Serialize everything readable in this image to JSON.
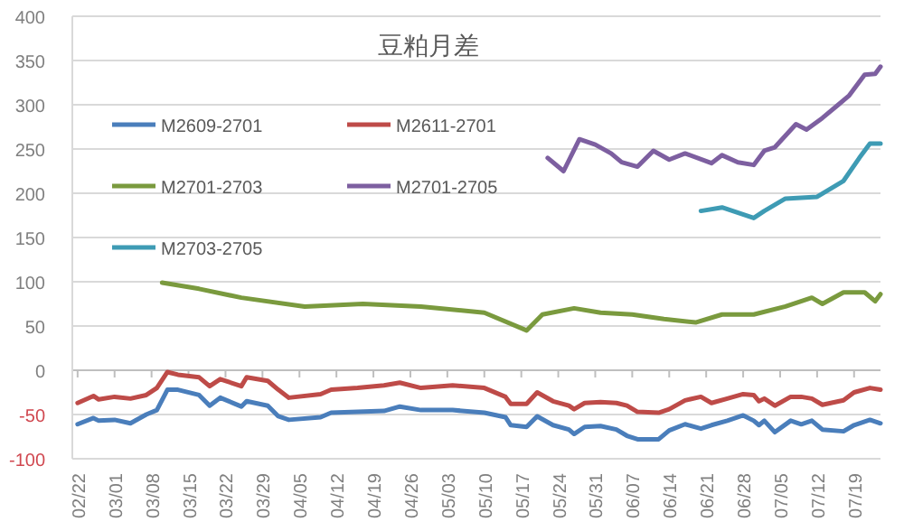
{
  "chart_data": {
    "type": "line",
    "title": "豆粕月差",
    "legend": "top left",
    "grid": "y",
    "marker": "none",
    "line_style": "solid",
    "x": [
      "--02-22",
      "--02-25",
      "--02-26",
      "--03-01",
      "--03-04",
      "--03-07",
      "--03-09",
      "--03-11",
      "--03-13",
      "--03-17",
      "--03-19",
      "--03-21",
      "--03-25",
      "--03-26",
      "--03-30",
      "--04-01",
      "--04-03",
      "--04-09",
      "--04-11",
      "--04-16",
      "--04-21",
      "--04-24",
      "--04-28",
      "--05-04",
      "--05-10",
      "--05-14",
      "--05-15",
      "--05-18",
      "--05-20",
      "--05-23",
      "--05-26",
      "--05-27",
      "--05-29",
      "--06-01",
      "--06-04",
      "--06-06",
      "--06-08",
      "--06-12",
      "--06-14",
      "--06-17",
      "--06-20",
      "--06-22",
      "--06-25",
      "--06-28",
      "--06-30",
      "--07-01",
      "--07-02",
      "--07-04",
      "--07-07",
      "--07-09",
      "--07-11",
      "--07-13",
      "--07-17",
      "--07-19",
      "--07-22",
      "--07-24"
    ],
    "xlim": [
      "--02-21",
      "--07-24"
    ],
    "xticks": [
      {
        "value": "--02-22",
        "label": "02/22"
      },
      {
        "value": "--03-01",
        "label": "03/01"
      },
      {
        "value": "--03-08",
        "label": "03/08"
      },
      {
        "value": "--03-15",
        "label": "03/15"
      },
      {
        "value": "--03-22",
        "label": "03/22"
      },
      {
        "value": "--03-29",
        "label": "03/29"
      },
      {
        "value": "--04-05",
        "label": "04/05"
      },
      {
        "value": "--04-12",
        "label": "04/12"
      },
      {
        "value": "--04-19",
        "label": "04/19"
      },
      {
        "value": "--04-26",
        "label": "04/26"
      },
      {
        "value": "--05-03",
        "label": "05/03"
      },
      {
        "value": "--05-10",
        "label": "05/10"
      },
      {
        "value": "--05-17",
        "label": "05/17"
      },
      {
        "value": "--05-24",
        "label": "05/24"
      },
      {
        "value": "--05-31",
        "label": "05/31"
      },
      {
        "value": "--06-07",
        "label": "06/07"
      },
      {
        "value": "--06-14",
        "label": "06/14"
      },
      {
        "value": "--06-21",
        "label": "06/21"
      },
      {
        "value": "--06-28",
        "label": "06/28"
      },
      {
        "value": "--07-05",
        "label": "07/05"
      },
      {
        "value": "--07-12",
        "label": "07/12"
      },
      {
        "value": "--07-19",
        "label": "07/19"
      }
    ],
    "ylim": [
      -100,
      400
    ],
    "yticks": [
      -100,
      -50,
      0,
      50,
      100,
      150,
      200,
      250,
      300,
      350,
      400
    ],
    "series": [
      {
        "name": "M2609-2701",
        "color": "#4a7ebb",
        "values": [
          -61,
          -54,
          -57,
          -56,
          -60,
          -50,
          -45,
          -22,
          -22,
          -28,
          -40,
          -31,
          -41,
          -35,
          -40,
          -52,
          -56,
          -53,
          -48,
          -47,
          -46,
          -41,
          -45,
          -45,
          -48,
          -53,
          -62,
          -64,
          -52,
          -62,
          -67,
          -72,
          -64,
          -63,
          -67,
          -74,
          -78,
          -78,
          -68,
          -61,
          -66,
          -62,
          -57,
          -51,
          -57,
          -62,
          -57,
          -70,
          -57,
          -61,
          -57,
          -67,
          -69,
          -62,
          -56,
          -60
        ]
      },
      {
        "name": "M2611-2701",
        "color": "#be4b48",
        "values": [
          -37,
          -29,
          -33,
          -30,
          -32,
          -28,
          -20,
          -2,
          -5,
          -8,
          -18,
          -10,
          -18,
          -8,
          -12,
          -22,
          -31,
          -27,
          -22,
          -20,
          -17,
          -14,
          -20,
          -17,
          -20,
          -30,
          -38,
          -38,
          -25,
          -35,
          -40,
          -44,
          -37,
          -36,
          -37,
          -40,
          -47,
          -48,
          -44,
          -34,
          -30,
          -37,
          -32,
          -27,
          -28,
          -35,
          -32,
          -40,
          -30,
          -30,
          -32,
          -39,
          -34,
          -25,
          -20,
          -22
        ]
      },
      {
        "name": "M2701-2703",
        "color": "#7a9a3e",
        "x": [
          "--03-10",
          "--03-17",
          "--03-25",
          "--04-06",
          "--04-17",
          "--04-28",
          "--05-10",
          "--05-18",
          "--05-21",
          "--05-27",
          "--06-01",
          "--06-07",
          "--06-13",
          "--06-19",
          "--06-24",
          "--06-30",
          "--07-06",
          "--07-11",
          "--07-13",
          "--07-17",
          "--07-21",
          "--07-23",
          "--07-24"
        ],
        "values": [
          99,
          92,
          82,
          72,
          75,
          72,
          65,
          45,
          63,
          70,
          65,
          63,
          58,
          54,
          63,
          63,
          72,
          82,
          75,
          88,
          88,
          78,
          86
        ]
      },
      {
        "name": "M2701-2705",
        "color": "#7d5fa0",
        "x": [
          "--05-22",
          "--05-25",
          "--05-28",
          "--05-31",
          "--06-03",
          "--06-05",
          "--06-08",
          "--06-11",
          "--06-14",
          "--06-17",
          "--06-22",
          "--06-24",
          "--06-27",
          "--06-30",
          "--07-02",
          "--07-04",
          "--07-08",
          "--07-10",
          "--07-13",
          "--07-16",
          "--07-18",
          "--07-21",
          "--07-23",
          "--07-24"
        ],
        "values": [
          240,
          225,
          261,
          255,
          245,
          235,
          230,
          248,
          238,
          245,
          234,
          243,
          235,
          232,
          248,
          252,
          278,
          272,
          285,
          300,
          310,
          334,
          335,
          343
        ]
      },
      {
        "name": "M2703-2705",
        "color": "#3e9bb4",
        "x": [
          "--06-20",
          "--06-24",
          "--06-30",
          "--07-02",
          "--07-06",
          "--07-12",
          "--07-17",
          "--07-20",
          "--07-22",
          "--07-24"
        ],
        "values": [
          180,
          184,
          172,
          180,
          194,
          196,
          214,
          240,
          256,
          256
        ]
      }
    ]
  }
}
